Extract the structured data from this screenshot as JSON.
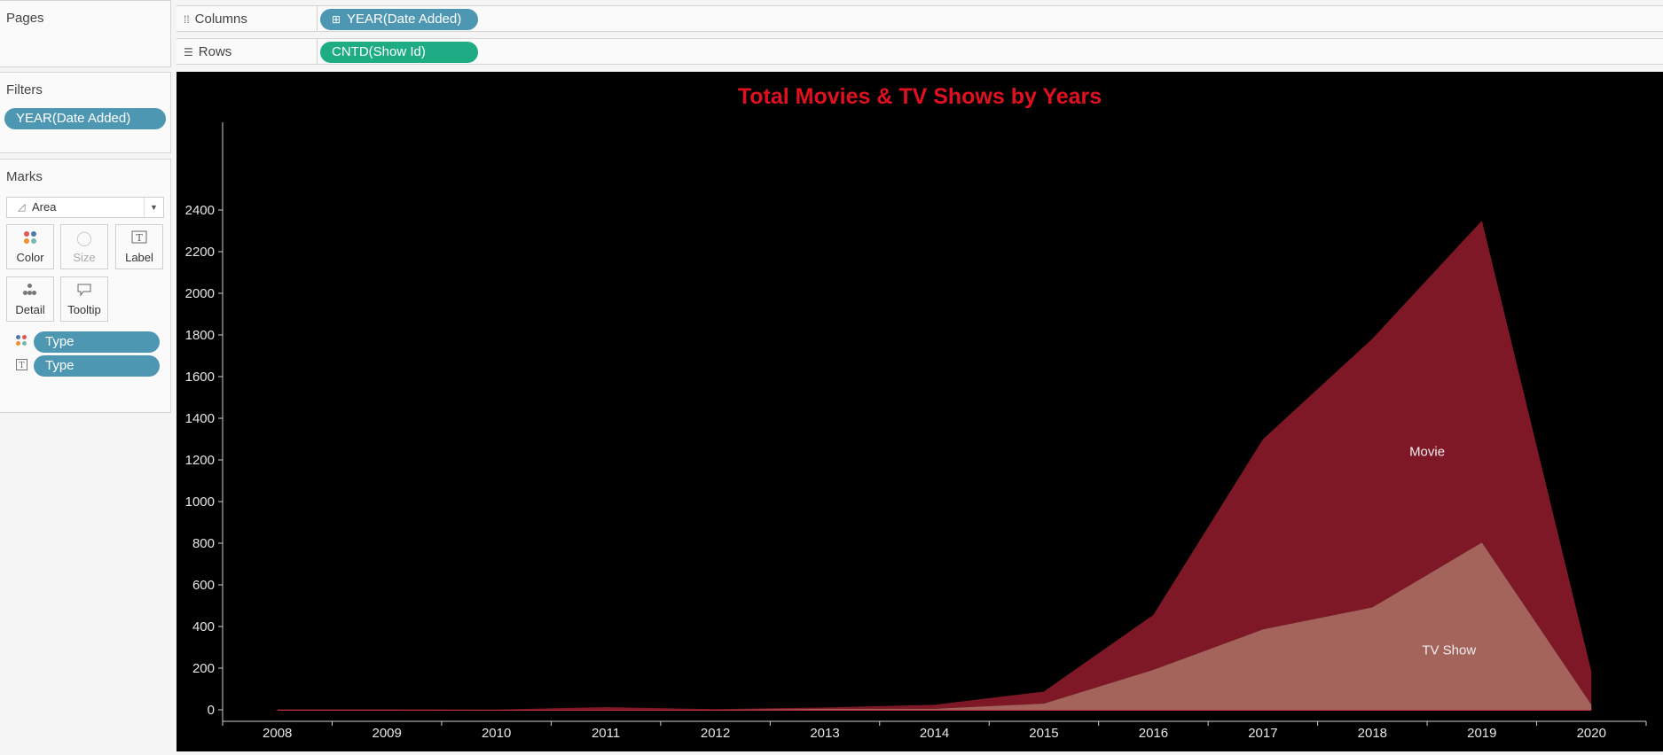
{
  "cards": {
    "pages": "Pages",
    "filters": "Filters",
    "marks": "Marks"
  },
  "filters": {
    "pill": "YEAR(Date Added)"
  },
  "marks": {
    "type": "Area",
    "buttons": [
      "Color",
      "Size",
      "Label",
      "Detail",
      "Tooltip"
    ],
    "fields": [
      {
        "encoding": "color-icon",
        "label": "Type"
      },
      {
        "encoding": "text-icon",
        "label": "Type"
      }
    ]
  },
  "shelves": {
    "columns": {
      "label": "Columns",
      "pill": "YEAR(Date Added)"
    },
    "rows": {
      "label": "Rows",
      "pill": "CNTD(Show Id)"
    }
  },
  "colors": {
    "movie": "#7f1826",
    "tv_show": "#a4635b",
    "title": "#e0101f",
    "pill_blue": "#4e97b3",
    "pill_green": "#1eac84"
  },
  "chart_data": {
    "type": "area",
    "title": "Total Movies & TV Shows by Years",
    "x": [
      "2008",
      "2009",
      "2010",
      "2011",
      "2012",
      "2013",
      "2014",
      "2015",
      "2016",
      "2017",
      "2018",
      "2019",
      "2020"
    ],
    "stacked": true,
    "series": [
      {
        "name": "TV Show",
        "values": [
          0,
          0,
          0,
          0,
          0,
          5,
          5,
          30,
          192,
          386,
          492,
          803,
          24
        ]
      },
      {
        "name": "Movie",
        "values": [
          2,
          2,
          1,
          13,
          3,
          6,
          19,
          58,
          264,
          913,
          1290,
          1546,
          160
        ]
      }
    ],
    "y_ticks": [
      0,
      200,
      400,
      600,
      800,
      1000,
      1200,
      1400,
      1600,
      1800,
      2000,
      2200,
      2400
    ],
    "ylim": [
      0,
      2480
    ],
    "grid": false,
    "legend": "none",
    "labels": [
      {
        "text": "Movie",
        "year": "2018.5",
        "value": 1220
      },
      {
        "text": "TV Show",
        "year": "2018.7",
        "value": 265
      }
    ]
  }
}
